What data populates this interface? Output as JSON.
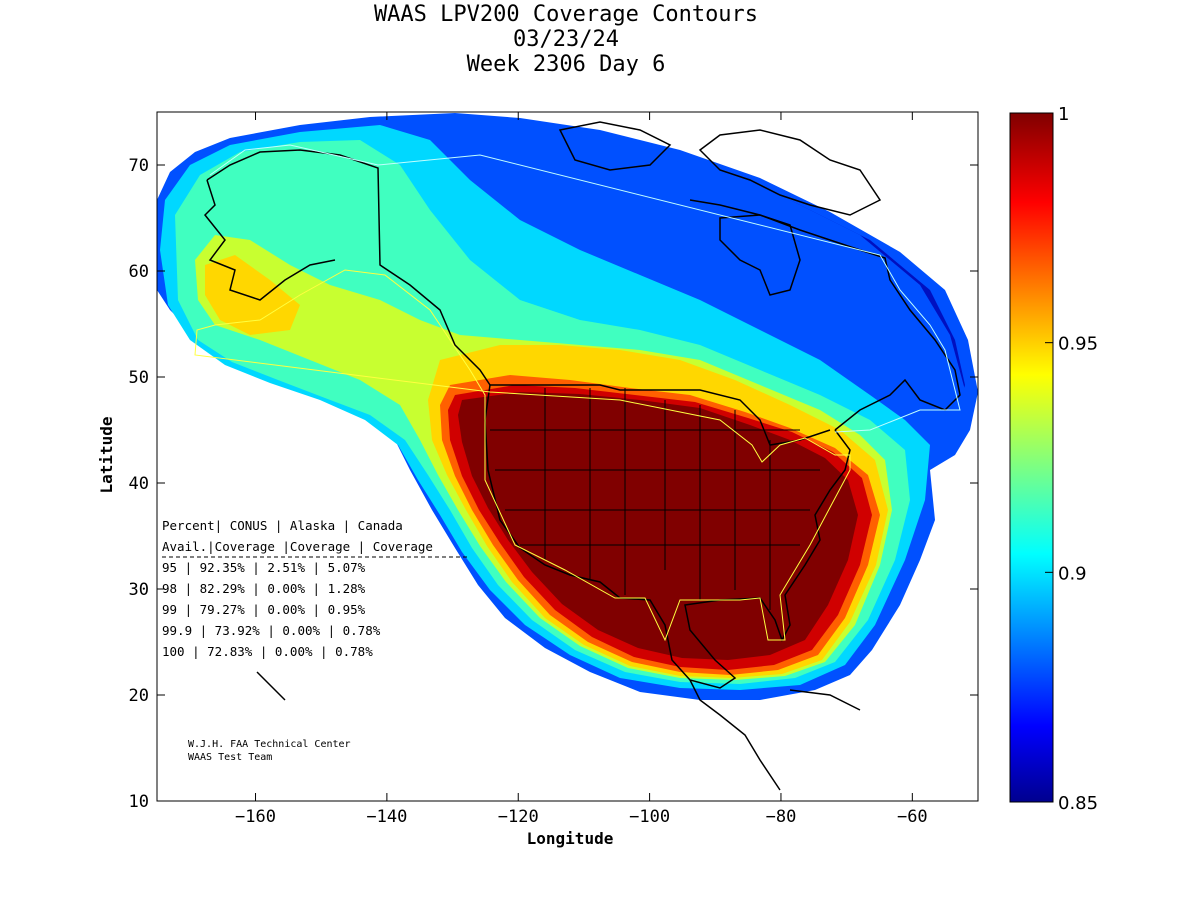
{
  "title": {
    "line1": "WAAS LPV200 Coverage Contours",
    "line2": "03/23/24",
    "line3": "Week 2306 Day 6"
  },
  "axes": {
    "xlabel": "Longitude",
    "ylabel": "Latitude",
    "xticks": [
      "-160",
      "-140",
      "-120",
      "-100",
      "-80",
      "-60"
    ],
    "yticks": [
      "70",
      "60",
      "50",
      "40",
      "30",
      "20",
      "10"
    ],
    "xrange": [
      -175,
      -50
    ],
    "yrange": [
      10,
      75
    ]
  },
  "colorbar": {
    "ticks": [
      "1",
      "0.95",
      "0.9",
      "0.85"
    ],
    "range": [
      0.85,
      1
    ],
    "colormap": "jet"
  },
  "stats_table": {
    "header1": [
      "Percent",
      "CONUS",
      "Alaska",
      "Canada"
    ],
    "header2": [
      "Avail.",
      "Coverage",
      "Coverage",
      "Coverage"
    ],
    "rows": [
      [
        "95",
        "92.35%",
        "2.51%",
        "5.07%"
      ],
      [
        "98",
        "82.29%",
        "0.00%",
        "1.28%"
      ],
      [
        "99",
        "79.27%",
        "0.00%",
        "0.95%"
      ],
      [
        "99.9",
        "73.92%",
        "0.00%",
        "0.78%"
      ],
      [
        "100",
        "72.83%",
        "0.00%",
        "0.78%"
      ]
    ]
  },
  "credit": {
    "line1": "W.J.H. FAA Technical Center",
    "line2": "WAAS Test Team"
  },
  "colors": {
    "c100": "#800000",
    "c099": "#d00000",
    "c097": "#ff6000",
    "c095": "#ffd700",
    "c093": "#c8ff30",
    "c091": "#40ffc0",
    "c090": "#00d8ff",
    "c089": "#00a0ff",
    "c088": "#0050ff",
    "c086": "#0010c0",
    "c085": "#00008f",
    "outline_yellow": "#ffff40",
    "outline_cyan": "#c0ffff"
  }
}
